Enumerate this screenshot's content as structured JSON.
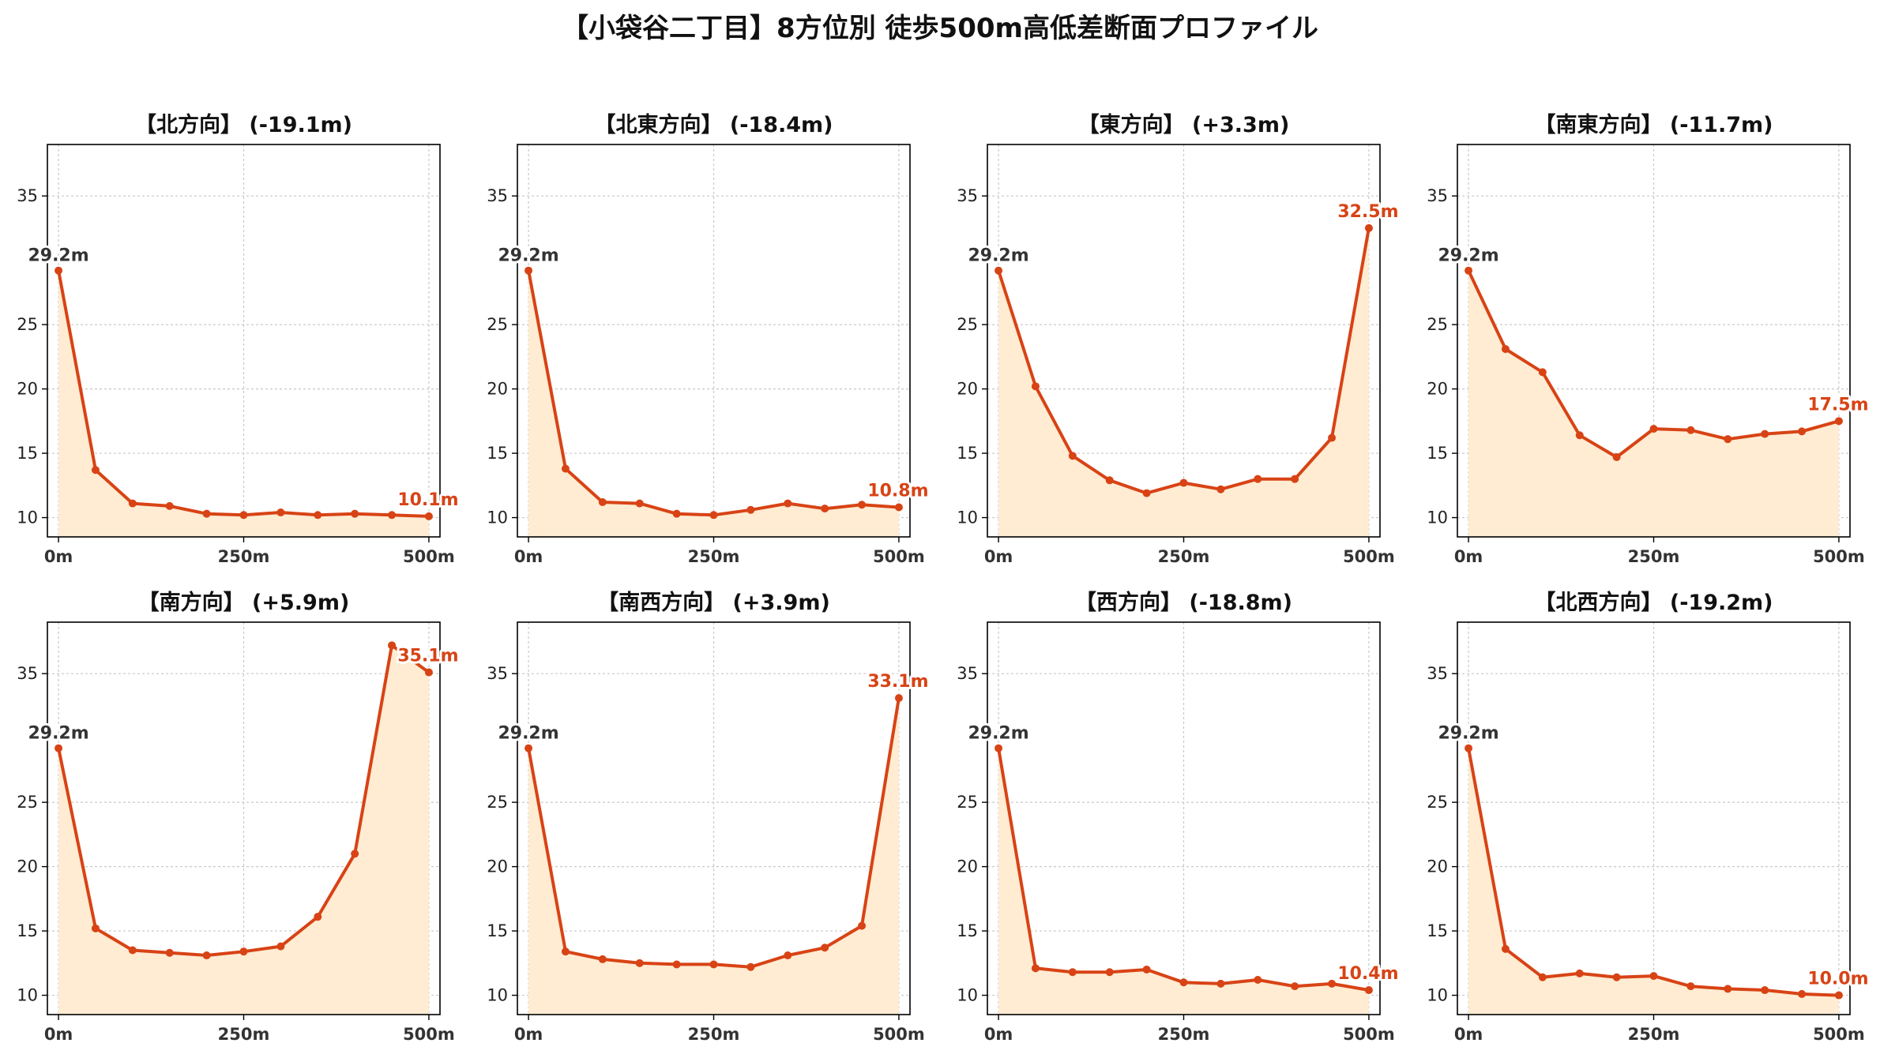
{
  "figure": {
    "title": "【小袋谷二丁目】8方位別 徒歩500m高低差断面プロファイル"
  },
  "colors": {
    "line": "#d84315",
    "fill": "#ffecd2",
    "start_label": "#333333",
    "end_label": "#d84315",
    "grid": "#c8c8c8"
  },
  "chart_data": [
    {
      "type": "area",
      "title": "【北方向】 (-19.1m)",
      "x": [
        0,
        50,
        100,
        150,
        200,
        250,
        300,
        350,
        400,
        450,
        500
      ],
      "y": [
        29.2,
        13.7,
        11.1,
        10.9,
        10.3,
        10.2,
        10.4,
        10.2,
        10.3,
        10.2,
        10.1
      ],
      "xticks": [
        "0m",
        "250m",
        "500m"
      ],
      "yticks": [
        "10",
        "15",
        "20",
        "25",
        "35"
      ],
      "start_label": "29.2m",
      "end_label": "10.1m",
      "ylim": [
        8.5,
        39
      ],
      "xlim": [
        -15,
        515
      ],
      "grid": true
    },
    {
      "type": "area",
      "title": "【北東方向】 (-18.4m)",
      "x": [
        0,
        50,
        100,
        150,
        200,
        250,
        300,
        350,
        400,
        450,
        500
      ],
      "y": [
        29.2,
        13.8,
        11.2,
        11.1,
        10.3,
        10.2,
        10.6,
        11.1,
        10.7,
        11.0,
        10.8
      ],
      "xticks": [
        "0m",
        "250m",
        "500m"
      ],
      "yticks": [
        "10",
        "15",
        "20",
        "25",
        "35"
      ],
      "start_label": "29.2m",
      "end_label": "10.8m",
      "ylim": [
        8.5,
        39
      ],
      "xlim": [
        -15,
        515
      ],
      "grid": true
    },
    {
      "type": "area",
      "title": "【東方向】 (+3.3m)",
      "x": [
        0,
        50,
        100,
        150,
        200,
        250,
        300,
        350,
        400,
        450,
        500
      ],
      "y": [
        29.2,
        20.2,
        14.8,
        12.9,
        11.9,
        12.7,
        12.2,
        13.0,
        13.0,
        16.2,
        32.5
      ],
      "xticks": [
        "0m",
        "250m",
        "500m"
      ],
      "yticks": [
        "10",
        "15",
        "20",
        "25",
        "35"
      ],
      "start_label": "29.2m",
      "end_label": "32.5m",
      "ylim": [
        8.5,
        39
      ],
      "xlim": [
        -15,
        515
      ],
      "grid": true
    },
    {
      "type": "area",
      "title": "【南東方向】 (-11.7m)",
      "x": [
        0,
        50,
        100,
        150,
        200,
        250,
        300,
        350,
        400,
        450,
        500
      ],
      "y": [
        29.2,
        23.1,
        21.3,
        16.4,
        14.7,
        16.9,
        16.8,
        16.1,
        16.5,
        16.7,
        17.5
      ],
      "xticks": [
        "0m",
        "250m",
        "500m"
      ],
      "yticks": [
        "10",
        "15",
        "20",
        "25",
        "35"
      ],
      "start_label": "29.2m",
      "end_label": "17.5m",
      "ylim": [
        8.5,
        39
      ],
      "xlim": [
        -15,
        515
      ],
      "grid": true
    },
    {
      "type": "area",
      "title": "【南方向】 (+5.9m)",
      "x": [
        0,
        50,
        100,
        150,
        200,
        250,
        300,
        350,
        400,
        450,
        500
      ],
      "y": [
        29.2,
        15.2,
        13.5,
        13.3,
        13.1,
        13.4,
        13.8,
        16.1,
        21.0,
        37.2,
        35.1
      ],
      "xticks": [
        "0m",
        "250m",
        "500m"
      ],
      "yticks": [
        "10",
        "15",
        "20",
        "25",
        "35"
      ],
      "start_label": "29.2m",
      "end_label": "35.1m",
      "ylim": [
        8.5,
        39
      ],
      "xlim": [
        -15,
        515
      ],
      "grid": true
    },
    {
      "type": "area",
      "title": "【南西方向】 (+3.9m)",
      "x": [
        0,
        50,
        100,
        150,
        200,
        250,
        300,
        350,
        400,
        450,
        500
      ],
      "y": [
        29.2,
        13.4,
        12.8,
        12.5,
        12.4,
        12.4,
        12.2,
        13.1,
        13.7,
        15.4,
        33.1
      ],
      "xticks": [
        "0m",
        "250m",
        "500m"
      ],
      "yticks": [
        "10",
        "15",
        "20",
        "25",
        "35"
      ],
      "start_label": "29.2m",
      "end_label": "33.1m",
      "ylim": [
        8.5,
        39
      ],
      "xlim": [
        -15,
        515
      ],
      "grid": true
    },
    {
      "type": "area",
      "title": "【西方向】 (-18.8m)",
      "x": [
        0,
        50,
        100,
        150,
        200,
        250,
        300,
        350,
        400,
        450,
        500
      ],
      "y": [
        29.2,
        12.1,
        11.8,
        11.8,
        12.0,
        11.0,
        10.9,
        11.2,
        10.7,
        10.9,
        10.4
      ],
      "xticks": [
        "0m",
        "250m",
        "500m"
      ],
      "yticks": [
        "10",
        "15",
        "20",
        "25",
        "35"
      ],
      "start_label": "29.2m",
      "end_label": "10.4m",
      "ylim": [
        8.5,
        39
      ],
      "xlim": [
        -15,
        515
      ],
      "grid": true
    },
    {
      "type": "area",
      "title": "【北西方向】 (-19.2m)",
      "x": [
        0,
        50,
        100,
        150,
        200,
        250,
        300,
        350,
        400,
        450,
        500
      ],
      "y": [
        29.2,
        13.6,
        11.4,
        11.7,
        11.4,
        11.5,
        10.7,
        10.5,
        10.4,
        10.1,
        10.0
      ],
      "xticks": [
        "0m",
        "250m",
        "500m"
      ],
      "yticks": [
        "10",
        "15",
        "20",
        "25",
        "35"
      ],
      "start_label": "29.2m",
      "end_label": "10.0m",
      "ylim": [
        8.5,
        39
      ],
      "xlim": [
        -15,
        515
      ],
      "grid": true
    }
  ]
}
